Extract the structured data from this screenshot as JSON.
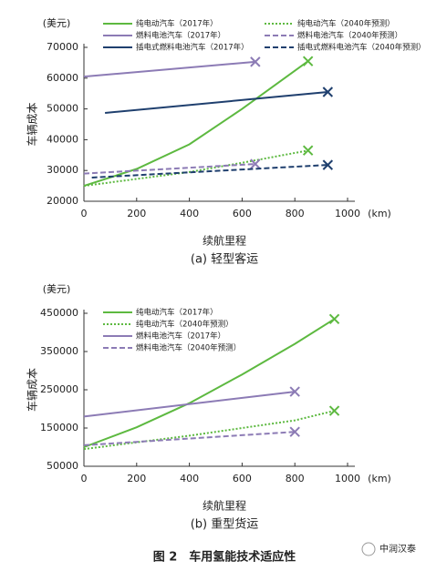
{
  "chart_data": [
    {
      "type": "line",
      "title": "(a) 轻型客运",
      "y_unit": "(美元)",
      "x_unit": "(km)",
      "xlabel": "续航里程",
      "ylabel": "车辆成本",
      "xlim": [
        0,
        1000
      ],
      "xticks": [
        0,
        200,
        400,
        600,
        800,
        1000
      ],
      "ylim": [
        20000,
        70000
      ],
      "yticks": [
        20000,
        30000,
        40000,
        50000,
        60000,
        70000
      ],
      "legend_columns": 2,
      "end_marker": "x",
      "series": [
        {
          "name": "纯电动汽车（2017年）",
          "color": "#5db940",
          "dash": "solid",
          "x": [
            0,
            200,
            400,
            600,
            850
          ],
          "values": [
            25000,
            30500,
            38500,
            50000,
            65500
          ]
        },
        {
          "name": "燃料电池汽车（2017年）",
          "color": "#8c7bb5",
          "dash": "solid",
          "x": [
            0,
            650
          ],
          "values": [
            60500,
            65300
          ]
        },
        {
          "name": "插电式燃料电池汽车（2017年）",
          "color": "#1f3f6e",
          "dash": "solid",
          "x": [
            80,
            925
          ],
          "values": [
            48700,
            55500
          ]
        },
        {
          "name": "纯电动汽车（2040年预测）",
          "color": "#5db940",
          "dash": "dotted",
          "x": [
            0,
            400,
            600,
            850
          ],
          "values": [
            25000,
            29500,
            32500,
            36500
          ]
        },
        {
          "name": "燃料电池汽车（2040年预测）",
          "color": "#8c7bb5",
          "dash": "dashed",
          "x": [
            0,
            650
          ],
          "values": [
            29000,
            32100
          ]
        },
        {
          "name": "插电式燃料电池汽车（2040年预测）",
          "color": "#1f3f6e",
          "dash": "dashed",
          "x": [
            30,
            925
          ],
          "values": [
            27700,
            31800
          ]
        }
      ]
    },
    {
      "type": "line",
      "title": "(b) 重型货运",
      "y_unit": "(美元)",
      "x_unit": "(km)",
      "xlabel": "续航里程",
      "ylabel": "车辆成本",
      "xlim": [
        0,
        1000
      ],
      "xticks": [
        0,
        200,
        400,
        600,
        800,
        1000
      ],
      "ylim": [
        50000,
        450000
      ],
      "yticks": [
        50000,
        150000,
        250000,
        350000,
        450000
      ],
      "legend_columns": 1,
      "end_marker": "x",
      "series": [
        {
          "name": "纯电动汽车（2017年）",
          "color": "#5db940",
          "dash": "solid",
          "x": [
            0,
            200,
            400,
            600,
            800,
            950
          ],
          "values": [
            100000,
            152000,
            215000,
            290000,
            370000,
            435000
          ]
        },
        {
          "name": "纯电动汽车（2040年预测）",
          "color": "#5db940",
          "dash": "dotted",
          "x": [
            0,
            400,
            800,
            950
          ],
          "values": [
            95000,
            130000,
            170000,
            195000
          ]
        },
        {
          "name": "燃料电池汽车（2017年）",
          "color": "#8c7bb5",
          "dash": "solid",
          "x": [
            0,
            800
          ],
          "values": [
            180000,
            245000
          ]
        },
        {
          "name": "燃料电池汽车（2040年预测）",
          "color": "#8c7bb5",
          "dash": "dashed",
          "x": [
            0,
            800
          ],
          "values": [
            105000,
            140000
          ]
        }
      ]
    }
  ],
  "figure_caption": "图 2　车用氢能技术适应性",
  "watermark": "中润汉泰"
}
